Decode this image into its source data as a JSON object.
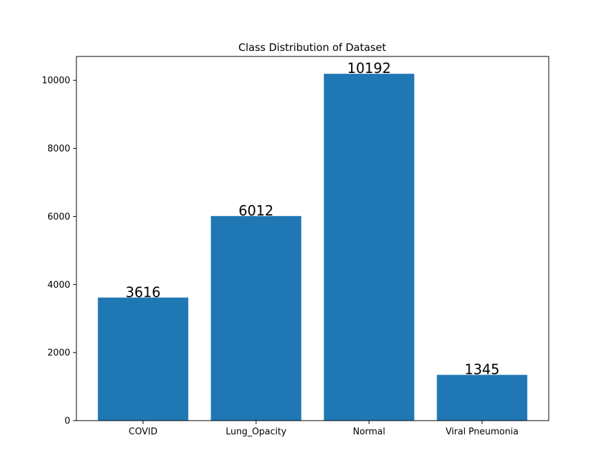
{
  "chart_data": {
    "type": "bar",
    "title": "Class Distribution of Dataset",
    "xlabel": "",
    "ylabel": "",
    "categories": [
      "COVID",
      "Lung_Opacity",
      "Normal",
      "Viral Pneumonia"
    ],
    "values": [
      3616,
      6012,
      10192,
      1345
    ],
    "data_labels": [
      "3616",
      "6012",
      "10192",
      "1345"
    ],
    "ylim": [
      0,
      10701.6
    ],
    "yticks": [
      0,
      2000,
      4000,
      6000,
      8000,
      10000
    ],
    "ytick_labels": [
      "0",
      "2000",
      "4000",
      "6000",
      "8000",
      "10000"
    ],
    "grid": false,
    "legend": "none",
    "bar_color": "#1f77b4"
  }
}
